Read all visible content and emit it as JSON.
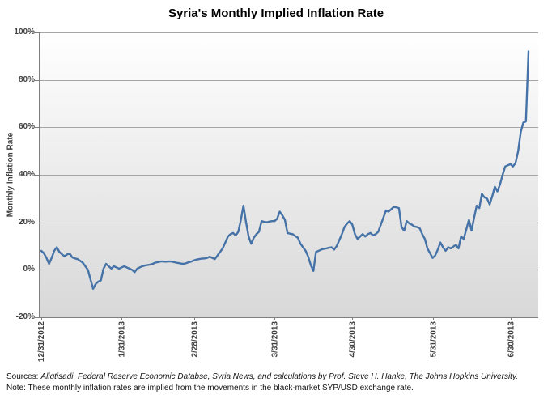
{
  "title": "Syria's Monthly Implied Inflation Rate",
  "y_axis": {
    "label": "Monthly Inflation Rate"
  },
  "footnote": {
    "sources_prefix": "Sources:",
    "sources_text": "Aliqtisadi, Federal Reserve Economic Databse, Syria News, and calculations by Prof. Steve H. Hanke, The Johns Hopkins University.",
    "note": "Note: These monthly inflation rates are implied from the movements in the black-market SYP/USD exchange rate."
  },
  "chart_data": {
    "type": "line",
    "title": "Syria's Monthly Implied Inflation Rate",
    "xlabel": "",
    "ylabel": "Monthly Inflation Rate",
    "ylim": [
      -20,
      100
    ],
    "y_tick_step": 20,
    "y_tick_labels": [
      "100%",
      "80%",
      "60%",
      "40%",
      "20%",
      "0%",
      "-20%"
    ],
    "x_tick_labels": [
      "12/31/2012",
      "1/31/2013",
      "2/28/2013",
      "3/31/2013",
      "4/30/2013",
      "5/31/2013",
      "6/30/2013"
    ],
    "x_tick_indices": [
      0,
      31,
      59,
      90,
      120,
      151,
      181
    ],
    "grid": true,
    "legend": "none",
    "line_color": "#4572A7",
    "gridline_color": "#A6A6A6",
    "axis_color": "#7F7F7F",
    "plot_bg_top": "#FFFFFF",
    "plot_bg_bottom": "#D8D8D8",
    "series": [
      {
        "name": "Monthly implied inflation rate (%)",
        "values": [
          8,
          7,
          5,
          2.5,
          5,
          8,
          9.5,
          7.5,
          6.5,
          5.7,
          6.5,
          6.8,
          5.2,
          4.8,
          4.5,
          3.8,
          3,
          1.5,
          0,
          -4,
          -8,
          -6,
          -5,
          -4.5,
          0.5,
          2.5,
          1.5,
          0.5,
          1.5,
          1,
          0.5,
          1,
          1.5,
          1,
          0.5,
          0,
          -1,
          0.5,
          1,
          1.5,
          1.8,
          2,
          2.2,
          2.5,
          3,
          3.2,
          3.5,
          3.5,
          3.4,
          3.5,
          3.5,
          3.3,
          3,
          2.8,
          2.6,
          2.5,
          2.8,
          3.2,
          3.5,
          4,
          4.3,
          4.5,
          4.7,
          4.8,
          5,
          5.5,
          5,
          4.5,
          6,
          7.5,
          9,
          11.5,
          14,
          15,
          15.5,
          14.5,
          16,
          21,
          27,
          20,
          14,
          11,
          13.5,
          15,
          16,
          20.5,
          20.2,
          20,
          20.3,
          20.5,
          20.5,
          21.5,
          24.5,
          23,
          21,
          15.5,
          15.2,
          15,
          14.2,
          13.5,
          11,
          9.5,
          8,
          5.5,
          2,
          -0.5,
          7.5,
          8,
          8.5,
          8.8,
          9,
          9.3,
          9.5,
          8.5,
          10,
          12.5,
          15,
          18,
          19.5,
          20.5,
          19,
          15,
          13,
          14,
          15,
          14,
          15,
          15.5,
          14.5,
          15,
          16,
          19,
          22,
          25,
          24.5,
          25.5,
          26.5,
          26.3,
          26,
          18,
          16.5,
          20.5,
          19.5,
          19,
          18.2,
          18,
          17.5,
          15,
          13,
          9,
          7,
          5,
          6,
          8.5,
          11.5,
          9.5,
          8,
          9.5,
          9,
          9.8,
          10.5,
          9,
          14,
          13,
          17,
          21,
          16.5,
          22,
          27,
          26,
          32,
          30.5,
          30,
          27.5,
          31,
          35,
          33,
          36,
          40,
          43.5,
          44,
          44.5,
          43.5,
          45,
          50,
          58,
          62,
          62.5,
          92
        ]
      }
    ]
  }
}
